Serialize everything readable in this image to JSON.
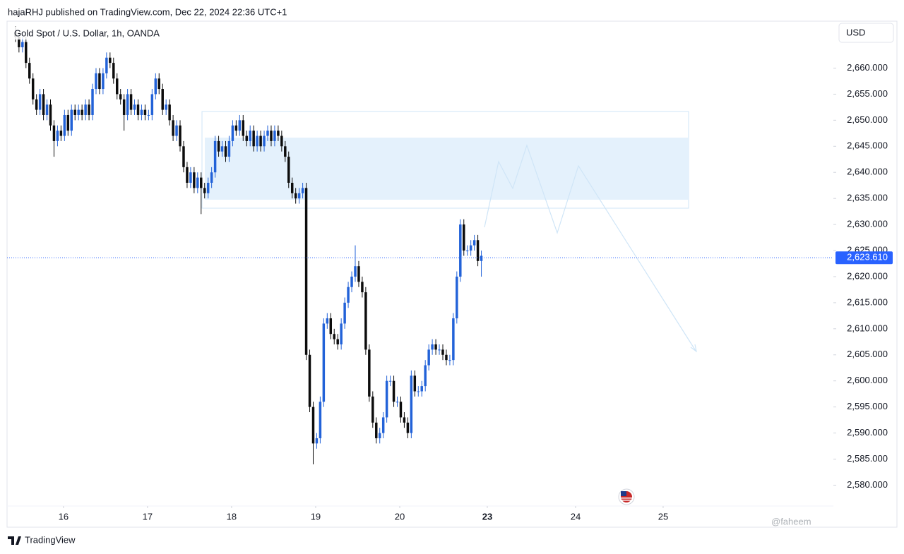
{
  "header": "hajaRHJ published on TradingView.com, Dec 22, 2024 22:36 UTC+1",
  "footer_brand": "TradingView",
  "watermark": "@faheem",
  "chart_data": {
    "type": "candlestick",
    "title": "Gold Spot / U.S. Dollar, 1h, OANDA",
    "currency": "USD",
    "up_color": "#2262d8",
    "down_color": "#0c0c0c",
    "open": [
      2667,
      2666,
      2664,
      2665,
      2661,
      2658,
      2654,
      2652,
      2655,
      2651,
      2653,
      2649,
      2646,
      2648,
      2647,
      2651,
      2648,
      2652,
      2651,
      2652,
      2651,
      2653,
      2651,
      2656,
      2659,
      2656,
      2659,
      2662,
      2661,
      2658,
      2655,
      2654,
      2651,
      2655,
      2652,
      2653,
      2651,
      2652,
      2651,
      2651,
      2655,
      2658,
      2656,
      2652,
      2653,
      2650,
      2647,
      2649,
      2645,
      2641,
      2638,
      2640,
      2637,
      2639,
      2637,
      2636,
      2638,
      2640,
      2646,
      2644,
      2645,
      2643,
      2646,
      2649,
      2648,
      2650,
      2647,
      2646,
      2648,
      2645,
      2647,
      2645,
      2647,
      2648,
      2646,
      2648,
      2647,
      2645,
      2643,
      2638,
      2636,
      2635,
      2636,
      2637,
      2605,
      2595,
      2588,
      2589,
      2596,
      2611,
      2612,
      2609,
      2608,
      2607,
      2611,
      2615,
      2618,
      2620,
      2622,
      2619,
      2617,
      2606,
      2597,
      2592,
      2589,
      2590,
      2593,
      2600,
      2600,
      2596,
      2596,
      2593,
      2592,
      2590,
      2601,
      2598,
      2598,
      2599,
      2603,
      2606,
      2607,
      2606,
      2606,
      2605,
      2604,
      2604,
      2612,
      2620,
      2630,
      2625,
      2625,
      2626,
      2627,
      2623
    ],
    "high": [
      2668,
      2667,
      2666,
      2666,
      2662,
      2659,
      2655,
      2656,
      2656,
      2654,
      2654,
      2650,
      2649,
      2649,
      2652,
      2652,
      2653,
      2653,
      2653,
      2653,
      2654,
      2654,
      2657,
      2660,
      2660,
      2660,
      2663,
      2663,
      2662,
      2659,
      2656,
      2655,
      2656,
      2656,
      2654,
      2654,
      2653,
      2653,
      2652,
      2656,
      2659,
      2659,
      2657,
      2654,
      2654,
      2651,
      2650,
      2650,
      2646,
      2642,
      2641,
      2641,
      2640,
      2640,
      2638,
      2639,
      2641,
      2647,
      2647,
      2646,
      2646,
      2647,
      2650,
      2650,
      2651,
      2651,
      2648,
      2649,
      2649,
      2648,
      2648,
      2648,
      2649,
      2649,
      2649,
      2649,
      2648,
      2646,
      2644,
      2639,
      2637,
      2637,
      2638,
      2638,
      2606,
      2596,
      2590,
      2597,
      2612,
      2613,
      2613,
      2610,
      2609,
      2612,
      2616,
      2619,
      2621,
      2626,
      2623,
      2620,
      2618,
      2607,
      2598,
      2593,
      2591,
      2594,
      2601,
      2601,
      2601,
      2597,
      2597,
      2594,
      2593,
      2602,
      2602,
      2599,
      2600,
      2604,
      2607,
      2608,
      2608,
      2607,
      2607,
      2606,
      2605,
      2613,
      2621,
      2631,
      2631,
      2626,
      2627,
      2628,
      2628,
      2625
    ],
    "low": [
      2665,
      2663,
      2663,
      2660,
      2657,
      2653,
      2651,
      2651,
      2650,
      2650,
      2648,
      2643,
      2645,
      2646,
      2646,
      2647,
      2647,
      2650,
      2650,
      2650,
      2650,
      2650,
      2650,
      2655,
      2655,
      2655,
      2658,
      2660,
      2657,
      2654,
      2653,
      2648,
      2650,
      2651,
      2651,
      2650,
      2650,
      2650,
      2650,
      2650,
      2654,
      2655,
      2651,
      2651,
      2649,
      2646,
      2646,
      2644,
      2640,
      2637,
      2637,
      2636,
      2636,
      2632,
      2635,
      2635,
      2637,
      2639,
      2643,
      2643,
      2642,
      2642,
      2645,
      2647,
      2647,
      2646,
      2645,
      2645,
      2644,
      2644,
      2644,
      2644,
      2646,
      2645,
      2645,
      2646,
      2644,
      2642,
      2637,
      2635,
      2634,
      2634,
      2635,
      2604,
      2594,
      2584,
      2587,
      2588,
      2595,
      2610,
      2608,
      2607,
      2606,
      2606,
      2610,
      2614,
      2617,
      2619,
      2618,
      2616,
      2605,
      2596,
      2591,
      2588,
      2588,
      2589,
      2592,
      2599,
      2595,
      2595,
      2592,
      2591,
      2589,
      2589,
      2597,
      2597,
      2597,
      2598,
      2602,
      2605,
      2605,
      2605,
      2604,
      2603,
      2603,
      2603,
      2611,
      2619,
      2624,
      2624,
      2624,
      2625,
      2622,
      2620
    ],
    "close": [
      2666,
      2664,
      2665,
      2661,
      2658,
      2654,
      2652,
      2655,
      2651,
      2653,
      2649,
      2646,
      2648,
      2647,
      2651,
      2648,
      2652,
      2651,
      2652,
      2651,
      2653,
      2651,
      2656,
      2659,
      2656,
      2659,
      2662,
      2661,
      2658,
      2655,
      2654,
      2651,
      2655,
      2652,
      2653,
      2651,
      2652,
      2651,
      2651,
      2655,
      2658,
      2656,
      2652,
      2653,
      2650,
      2647,
      2649,
      2645,
      2641,
      2638,
      2640,
      2637,
      2639,
      2637,
      2636,
      2638,
      2640,
      2646,
      2644,
      2645,
      2643,
      2646,
      2649,
      2648,
      2650,
      2647,
      2646,
      2648,
      2645,
      2647,
      2645,
      2647,
      2648,
      2646,
      2648,
      2647,
      2645,
      2643,
      2638,
      2636,
      2635,
      2636,
      2637,
      2605,
      2595,
      2588,
      2589,
      2596,
      2611,
      2612,
      2609,
      2608,
      2607,
      2611,
      2615,
      2618,
      2620,
      2622,
      2619,
      2617,
      2606,
      2597,
      2592,
      2589,
      2590,
      2593,
      2600,
      2600,
      2596,
      2596,
      2593,
      2592,
      2590,
      2601,
      2598,
      2598,
      2599,
      2603,
      2606,
      2607,
      2606,
      2606,
      2605,
      2604,
      2604,
      2612,
      2620,
      2630,
      2625,
      2625,
      2626,
      2627,
      2623,
      2624
    ],
    "last_price": 2623.61,
    "last_price_label": "2,623.610",
    "last_price_color": "#2962ff",
    "xlim": [
      -2.4,
      233.5
    ],
    "xticks": [
      {
        "value": 13.7,
        "label": "16"
      },
      {
        "value": 37.7,
        "label": "17"
      },
      {
        "value": 61.7,
        "label": "18"
      },
      {
        "value": 85.7,
        "label": "19"
      },
      {
        "value": 109.7,
        "label": "20"
      },
      {
        "value": 134.7,
        "label": "23"
      },
      {
        "value": 159.9,
        "label": "24"
      },
      {
        "value": 184.9,
        "label": "25"
      }
    ],
    "ylim": [
      2576,
      2669
    ],
    "yticks": [
      {
        "value": 2580,
        "label": "2,580.000"
      },
      {
        "value": 2585,
        "label": "2,585.000"
      },
      {
        "value": 2590,
        "label": "2,590.000"
      },
      {
        "value": 2595,
        "label": "2,595.000"
      },
      {
        "value": 2600,
        "label": "2,600.000"
      },
      {
        "value": 2605,
        "label": "2,605.000"
      },
      {
        "value": 2610,
        "label": "2,610.000"
      },
      {
        "value": 2615,
        "label": "2,615.000"
      },
      {
        "value": 2620,
        "label": "2,620.000"
      },
      {
        "value": 2625,
        "label": "2,625.000"
      },
      {
        "value": 2630,
        "label": "2,630.000"
      },
      {
        "value": 2635,
        "label": "2,635.000"
      },
      {
        "value": 2640,
        "label": "2,640.000"
      },
      {
        "value": 2645,
        "label": "2,645.000"
      },
      {
        "value": 2650,
        "label": "2,650.000"
      },
      {
        "value": 2655,
        "label": "2,655.000"
      },
      {
        "value": 2660,
        "label": "2,660.000"
      }
    ],
    "grid": false
  }
}
